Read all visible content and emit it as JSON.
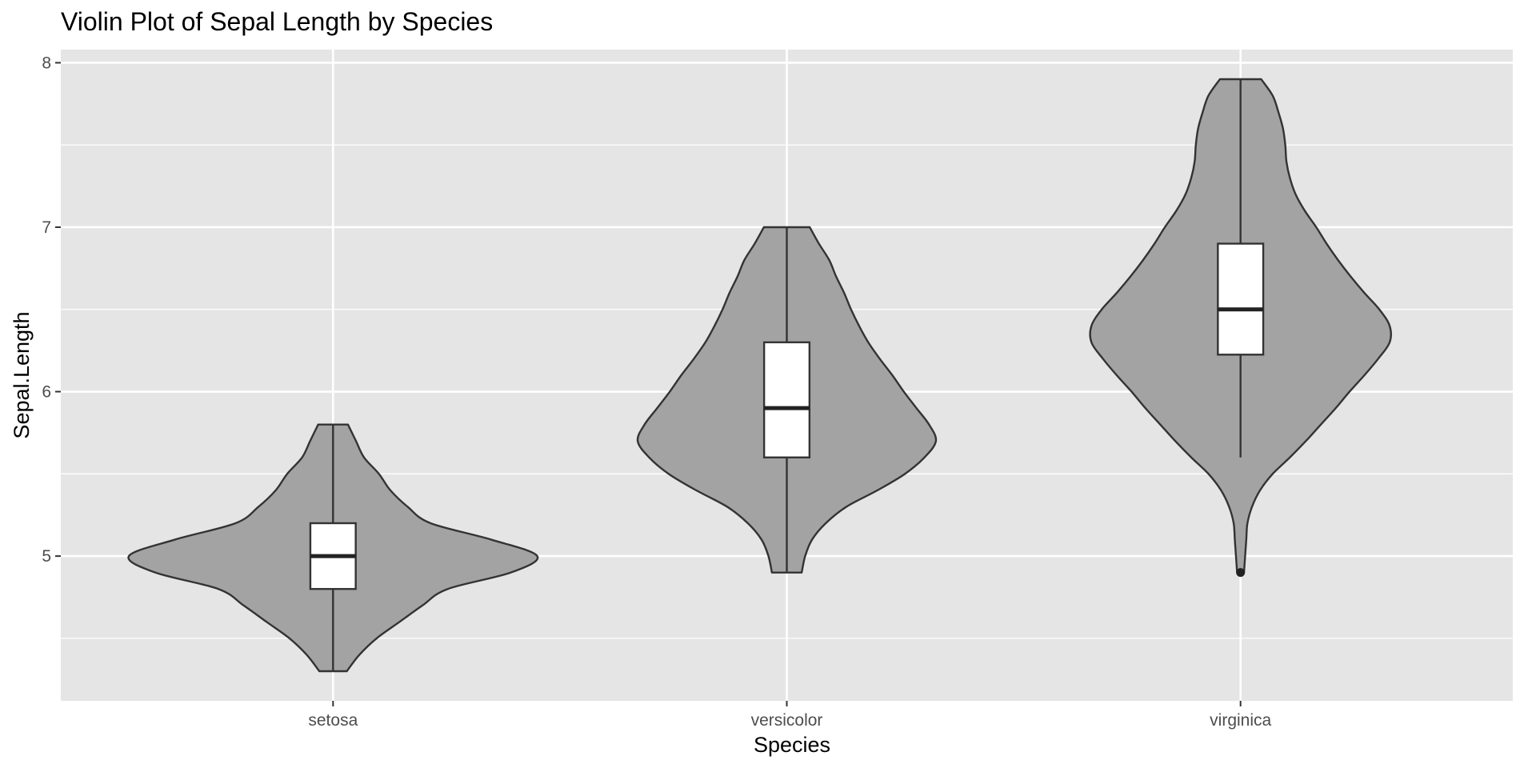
{
  "chart_data": {
    "type": "violin",
    "title": "Violin Plot of Sepal Length by Species",
    "xlabel": "Species",
    "ylabel": "Sepal.Length",
    "categories": [
      "setosa",
      "versicolor",
      "virginica"
    ],
    "ylim": [
      4.12,
      8.08
    ],
    "y_ticks": [
      5,
      6,
      7,
      8
    ],
    "y_tick_labels": [
      "5",
      "6",
      "7",
      "8"
    ],
    "y_minor_ticks": [
      4.5,
      5.5,
      6.5,
      7.5
    ],
    "grid": true,
    "colors": {
      "panel_background": "#e5e5e5",
      "grid_line": "#ffffff",
      "violin_fill": "#a3a3a3",
      "outline": "#333333",
      "box_fill": "#ffffff",
      "median_line": "#222222",
      "tick": "#333333"
    },
    "series": [
      {
        "category": "setosa",
        "violin": {
          "y": [
            4.3,
            4.4,
            4.5,
            4.6,
            4.7,
            4.8,
            4.9,
            5.0,
            5.1,
            5.2,
            5.3,
            5.4,
            5.5,
            5.6,
            5.7,
            5.8
          ],
          "half_width": [
            0.12,
            0.23,
            0.38,
            0.58,
            0.78,
            1.0,
            1.55,
            1.78,
            1.38,
            0.85,
            0.65,
            0.5,
            0.4,
            0.27,
            0.2,
            0.13
          ]
        },
        "box": {
          "q1": 4.8,
          "median": 5.0,
          "q3": 5.2,
          "whisker_low": 4.3,
          "whisker_high": 5.8
        },
        "outliers": []
      },
      {
        "category": "versicolor",
        "violin": {
          "y": [
            4.9,
            5.0,
            5.1,
            5.2,
            5.3,
            5.4,
            5.5,
            5.6,
            5.7,
            5.8,
            5.9,
            6.0,
            6.1,
            6.2,
            6.3,
            6.4,
            6.5,
            6.6,
            6.7,
            6.8,
            6.9,
            7.0
          ],
          "half_width": [
            0.13,
            0.16,
            0.22,
            0.34,
            0.52,
            0.79,
            1.03,
            1.2,
            1.3,
            1.24,
            1.13,
            1.02,
            0.92,
            0.81,
            0.71,
            0.63,
            0.56,
            0.5,
            0.43,
            0.37,
            0.28,
            0.2
          ]
        },
        "box": {
          "q1": 5.6,
          "median": 5.9,
          "q3": 6.3,
          "whisker_low": 4.9,
          "whisker_high": 7.0
        },
        "outliers": []
      },
      {
        "category": "virginica",
        "violin": {
          "y": [
            4.9,
            5.0,
            5.1,
            5.2,
            5.3,
            5.4,
            5.5,
            5.6,
            5.7,
            5.8,
            5.9,
            6.0,
            6.1,
            6.2,
            6.3,
            6.4,
            6.5,
            6.6,
            6.7,
            6.8,
            6.9,
            7.0,
            7.1,
            7.2,
            7.3,
            7.4,
            7.5,
            7.6,
            7.7,
            7.8,
            7.9
          ],
          "half_width": [
            0.03,
            0.04,
            0.05,
            0.06,
            0.1,
            0.17,
            0.28,
            0.43,
            0.57,
            0.7,
            0.83,
            0.95,
            1.08,
            1.2,
            1.3,
            1.3,
            1.21,
            1.08,
            0.96,
            0.85,
            0.75,
            0.66,
            0.56,
            0.48,
            0.43,
            0.4,
            0.39,
            0.37,
            0.33,
            0.28,
            0.18
          ]
        },
        "box": {
          "q1": 6.225,
          "median": 6.5,
          "q3": 6.9,
          "whisker_low": 5.6,
          "whisker_high": 7.9
        },
        "outliers": [
          4.9
        ]
      }
    ]
  }
}
